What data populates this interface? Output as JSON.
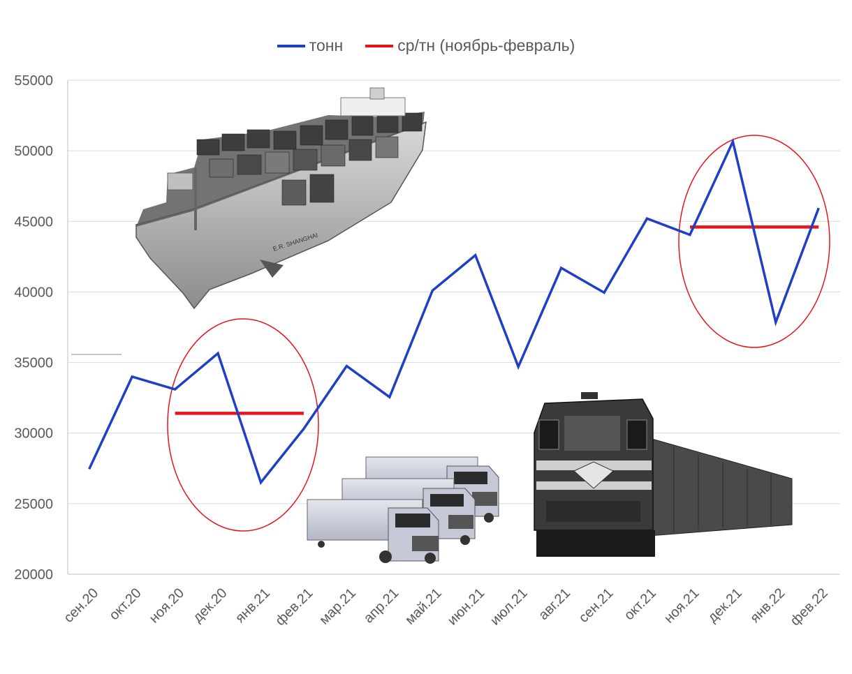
{
  "chart_data": {
    "type": "line",
    "categories": [
      "сен.20",
      "окт.20",
      "ноя.20",
      "дек.20",
      "янв.21",
      "фев.21",
      "мар.21",
      "апр.21",
      "май.21",
      "июн.21",
      "июл.21",
      "авг.21",
      "сен.21",
      "окт.21",
      "ноя.21",
      "дек.21",
      "янв.22",
      "фев.22"
    ],
    "series": [
      {
        "name": "тонн",
        "color": "#1f3fc4",
        "values": [
          27450,
          34000,
          33100,
          35650,
          26500,
          30300,
          34750,
          32550,
          40100,
          42600,
          34700,
          41700,
          39950,
          45200,
          44050,
          50650,
          37850,
          45950
        ]
      },
      {
        "name": "ср/тн (ноябрь-февраль)",
        "color": "#e8141a",
        "segments": [
          {
            "from": "ноя.20",
            "to": "фев.21",
            "value": 31400
          },
          {
            "from": "ноя.21",
            "to": "фев.22",
            "value": 44600
          }
        ]
      }
    ],
    "yticks": [
      20000,
      25000,
      30000,
      35000,
      40000,
      45000,
      50000,
      55000
    ],
    "ylim": [
      20000,
      55000
    ],
    "grid": true,
    "legend_position": "top"
  },
  "decor": {
    "ship_icon": "container-ship-icon",
    "trucks_icon": "trucks-icon",
    "train_icon": "locomotive-train-icon",
    "ship_name": "E.R. SHANGHAI",
    "highlight_color": "#e8141a"
  }
}
